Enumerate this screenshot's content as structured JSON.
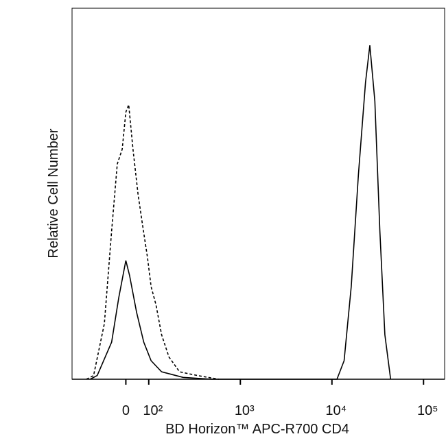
{
  "chart_data": {
    "type": "line",
    "x_label": "BD Horizon™ APC-R700 CD4",
    "y_label": "Relative Cell Number",
    "scale": "biexponential",
    "xlim": [
      -235,
      170000
    ],
    "ylim": [
      0,
      100
    ],
    "xticks": [
      0,
      {
        "value": 100,
        "label": "10²"
      },
      {
        "value": 1000,
        "label": "10³"
      },
      {
        "value": 10000,
        "label": "10⁴"
      },
      {
        "value": 100000,
        "label": "10⁵"
      }
    ],
    "series": [
      {
        "color": "#000000",
        "dashed": false,
        "x": [
          -156,
          -125,
          -62,
          -31,
          0,
          16,
          47,
          78,
          106,
          138,
          237,
          487,
          11350,
          13580,
          16260,
          19450,
          23280,
          25950,
          29430,
          33370,
          37850,
          43750
        ],
        "values": [
          0,
          1,
          10,
          22,
          32,
          28,
          18,
          10,
          5,
          2,
          0.5,
          0,
          0,
          5,
          25,
          55,
          80,
          90,
          75,
          40,
          12,
          0
        ]
      },
      {
        "color": "#000000",
        "dashed": true,
        "x": [
          -172,
          -141,
          -94,
          -62,
          -37.5,
          -16,
          0,
          12.5,
          31,
          53,
          72,
          94,
          106,
          120,
          138,
          166,
          217,
          340,
          584
        ],
        "values": [
          0,
          1,
          15,
          40,
          58,
          62,
          72,
          74,
          62,
          50,
          42,
          33,
          25,
          20,
          12,
          6,
          2,
          1,
          0
        ]
      }
    ]
  }
}
